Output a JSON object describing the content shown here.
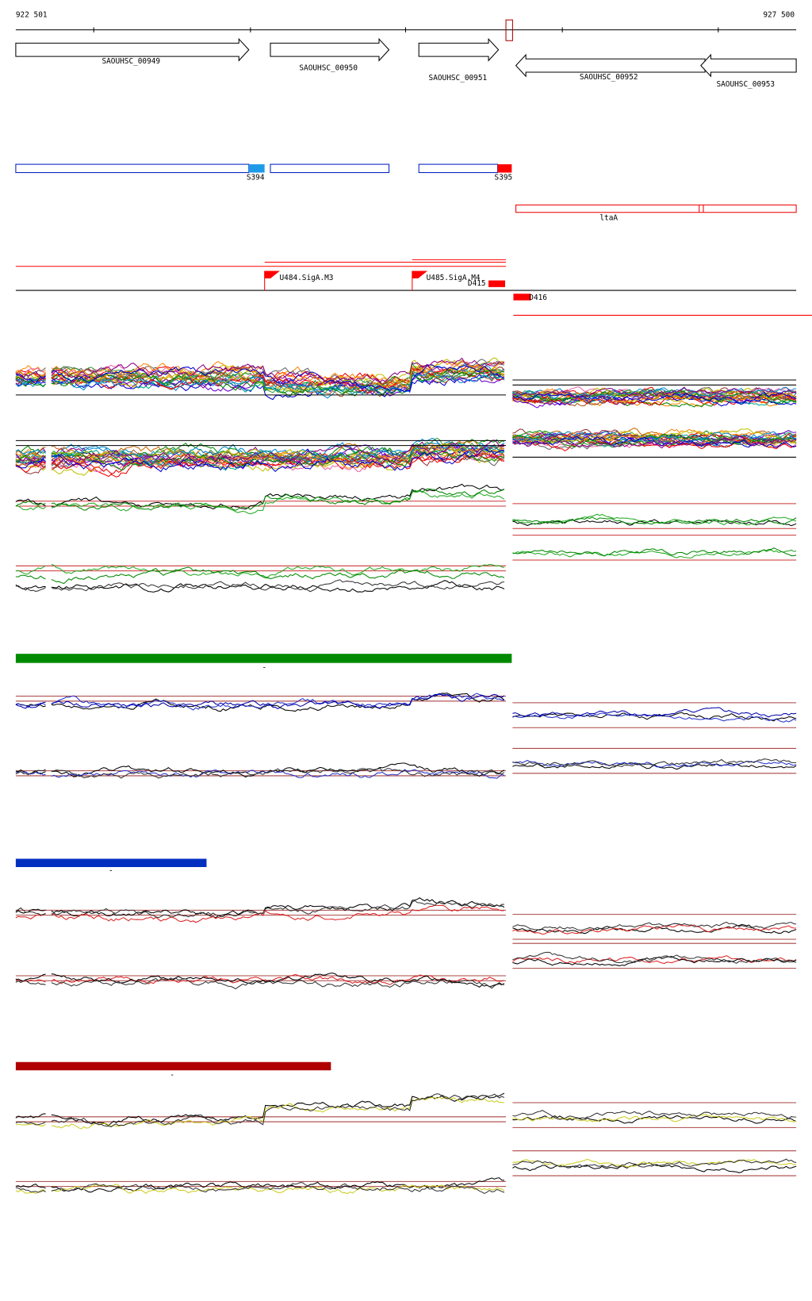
{
  "ruler": {
    "start": "922 501",
    "end": "927 500"
  },
  "genes": [
    {
      "label": "SAOUHSC_00949"
    },
    {
      "label": "SAOUHSC_00950"
    },
    {
      "label": "SAOUHSC_00951"
    },
    {
      "label": "SAOUHSC_00952"
    },
    {
      "label": "SAOUHSC_00953"
    }
  ],
  "segments": [
    {
      "label": "S394"
    },
    {
      "label": "S395"
    }
  ],
  "operon": {
    "label": "ltaA"
  },
  "promoters": [
    {
      "label": "U484.SigA.M3"
    },
    {
      "label": "U485.SigA.M4"
    }
  ],
  "features": [
    {
      "label": "D415"
    },
    {
      "label": "D416"
    }
  ],
  "condition_markers": [
    "-",
    "-",
    "-"
  ]
}
